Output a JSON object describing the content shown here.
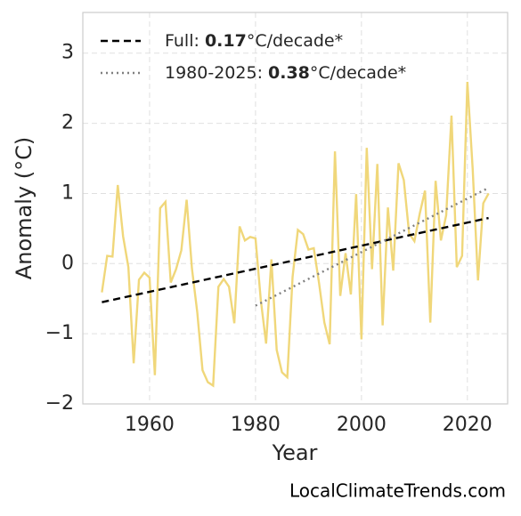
{
  "chart_data": {
    "type": "line",
    "xlabel": "Year",
    "ylabel": "Anomaly (°C)",
    "footer": "LocalClimateTrends.com",
    "xlim": [
      1947.4,
      2027.6
    ],
    "ylim": [
      -2,
      3.58
    ],
    "xticks": [
      1960,
      1980,
      2000,
      2020
    ],
    "yticks": [
      {
        "value": -2,
        "label": "−2"
      },
      {
        "value": -1,
        "label": "−1"
      },
      0,
      1,
      2,
      3
    ],
    "grid": true,
    "legend": "upper left",
    "series": [
      {
        "color": "#f0d77a",
        "x": [
          1951,
          1952,
          1953,
          1954,
          1955,
          1956,
          1957,
          1958,
          1959,
          1960,
          1961,
          1962,
          1963,
          1964,
          1965,
          1966,
          1967,
          1968,
          1969,
          1970,
          1971,
          1972,
          1973,
          1974,
          1975,
          1976,
          1977,
          1978,
          1979,
          1980,
          1981,
          1982,
          1983,
          1984,
          1985,
          1986,
          1987,
          1988,
          1989,
          1990,
          1991,
          1992,
          1993,
          1994,
          1995,
          1996,
          1997,
          1998,
          1999,
          2000,
          2001,
          2002,
          2003,
          2004,
          2005,
          2006,
          2007,
          2008,
          2009,
          2010,
          2011,
          2012,
          2013,
          2014,
          2015,
          2016,
          2017,
          2018,
          2019,
          2020,
          2021,
          2022,
          2023,
          2024
        ],
        "values": [
          -0.41,
          0.11,
          0.1,
          1.12,
          0.39,
          -0.05,
          -1.42,
          -0.23,
          -0.13,
          -0.2,
          -1.59,
          0.79,
          0.88,
          -0.27,
          -0.08,
          0.19,
          0.91,
          -0.07,
          -0.69,
          -1.52,
          -1.69,
          -1.74,
          -0.33,
          -0.22,
          -0.33,
          -0.85,
          0.53,
          0.33,
          0.38,
          0.36,
          -0.52,
          -1.14,
          0.06,
          -1.23,
          -1.55,
          -1.62,
          -0.19,
          0.48,
          0.42,
          0.2,
          0.22,
          -0.28,
          -0.84,
          -1.15,
          1.6,
          -0.46,
          0.15,
          -0.44,
          0.99,
          -1.08,
          1.65,
          -0.08,
          1.42,
          -0.88,
          0.8,
          -0.1,
          1.43,
          1.19,
          0.43,
          0.32,
          0.71,
          1.04,
          -0.84,
          1.18,
          0.33,
          0.69,
          2.11,
          -0.05,
          0.11,
          2.59,
          1.35,
          -0.24,
          0.86,
          1.0
        ]
      },
      {
        "name": {
          "prefix": "Full: ",
          "rate": "0.17",
          "suffix": "°C/decade*"
        },
        "color": "#000000",
        "dash": "dashed",
        "x": [
          1951,
          2024
        ],
        "values": [
          -0.55,
          0.65
        ]
      },
      {
        "name": {
          "prefix": "1980-2025: ",
          "rate": "0.38",
          "suffix": "°C/decade*"
        },
        "color": "#808080",
        "dash": "dotted",
        "x": [
          1980,
          2024
        ],
        "values": [
          -0.6,
          1.08
        ]
      }
    ]
  }
}
